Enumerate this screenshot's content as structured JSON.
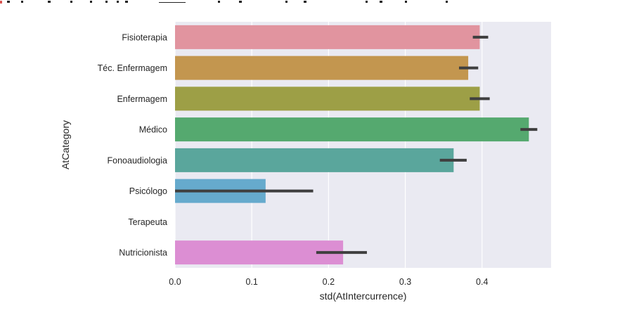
{
  "chart_data": {
    "type": "bar",
    "orientation": "horizontal",
    "categories": [
      "Fisioterapia",
      "Téc. Enfermagem",
      "Enfermagem",
      "Médico",
      "Fonoaudiologia",
      "Psicólogo",
      "Terapeuta",
      "Nutricionista"
    ],
    "values": [
      0.397,
      0.382,
      0.397,
      0.461,
      0.363,
      0.118,
      0.0,
      0.219
    ],
    "error_low": [
      0.388,
      0.37,
      0.384,
      0.45,
      0.345,
      0.0,
      0.0,
      0.184
    ],
    "error_high": [
      0.408,
      0.395,
      0.41,
      0.472,
      0.38,
      0.18,
      0.0,
      0.25
    ],
    "colors": [
      "#e1949f",
      "#c3964f",
      "#9d9f46",
      "#55a96f",
      "#5aa69c",
      "#66aacd",
      "#b4a5d7",
      "#dc8ed3"
    ],
    "error_color": "#3f3f3f",
    "background": "#eaeaf2",
    "grid": true,
    "xlabel": "std(AtIntercurrence)",
    "ylabel": "AtCategory",
    "xlim": [
      0.0,
      0.49
    ],
    "xticks": [
      0.0,
      0.1,
      0.2,
      0.3,
      0.4
    ],
    "xtick_labels": [
      "0.0",
      "0.1",
      "0.2",
      "0.3",
      "0.4"
    ]
  }
}
